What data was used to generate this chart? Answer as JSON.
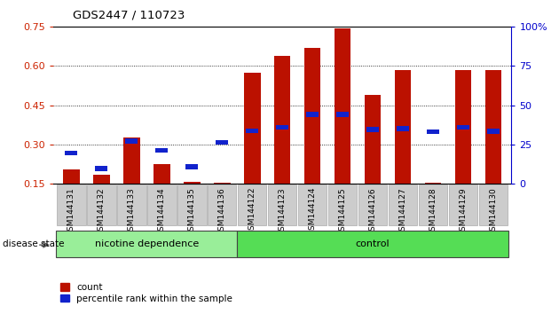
{
  "title": "GDS2447 / 110723",
  "samples": [
    "GSM144131",
    "GSM144132",
    "GSM144133",
    "GSM144134",
    "GSM144135",
    "GSM144136",
    "GSM144122",
    "GSM144123",
    "GSM144124",
    "GSM144125",
    "GSM144126",
    "GSM144127",
    "GSM144128",
    "GSM144129",
    "GSM144130"
  ],
  "red_values": [
    0.205,
    0.183,
    0.325,
    0.225,
    0.158,
    0.155,
    0.575,
    0.638,
    0.668,
    0.742,
    0.49,
    0.585,
    0.155,
    0.583,
    0.583
  ],
  "blue_values": [
    0.268,
    0.208,
    0.313,
    0.278,
    0.215,
    0.307,
    0.352,
    0.365,
    0.415,
    0.415,
    0.357,
    0.36,
    0.348,
    0.365,
    0.35
  ],
  "ylim_left": [
    0.15,
    0.75
  ],
  "ylim_right": [
    0,
    100
  ],
  "yticks_left": [
    0.15,
    0.3,
    0.45,
    0.6,
    0.75
  ],
  "yticks_right": [
    0,
    25,
    50,
    75,
    100
  ],
  "left_color": "#cc2200",
  "right_color": "#0000cc",
  "bar_color_red": "#bb1100",
  "bar_color_blue": "#1122cc",
  "nicotine_samples": 6,
  "control_samples": 9,
  "nicotine_label": "nicotine dependence",
  "control_label": "control",
  "disease_label": "disease state",
  "legend_count": "count",
  "legend_percentile": "percentile rank within the sample",
  "group1_color": "#99ee99",
  "group2_color": "#55dd55",
  "bar_bottom": 0.15,
  "bar_width": 0.55,
  "bg_color": "#ffffff"
}
